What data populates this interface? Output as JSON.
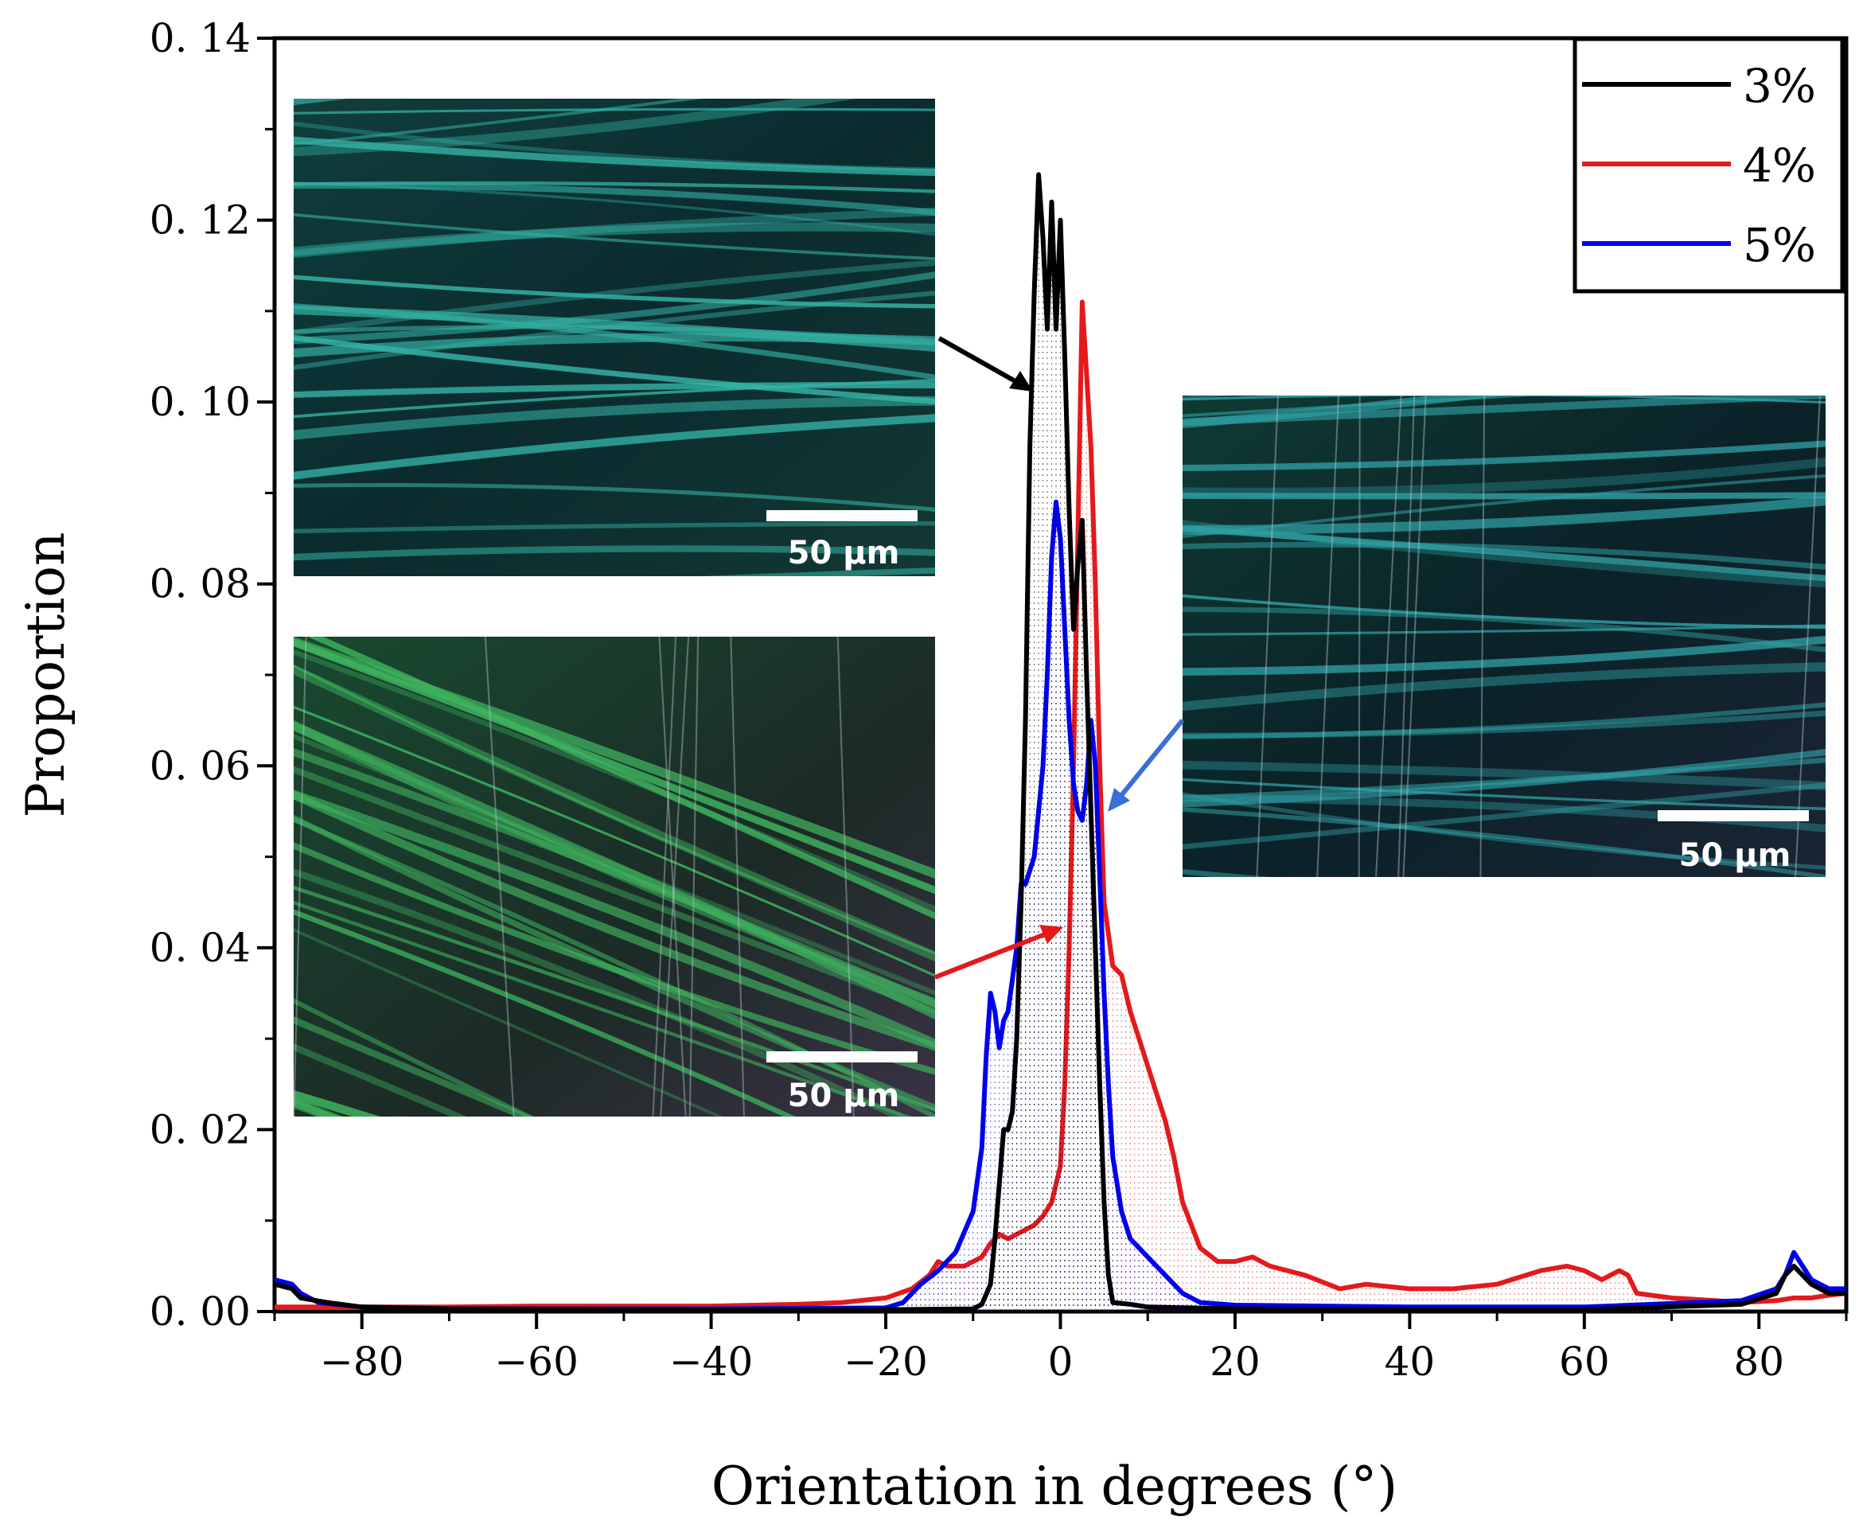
{
  "chart_data": {
    "type": "line",
    "title": "",
    "xlabel": "Orientation in degrees (°)",
    "ylabel": "Proportion",
    "xlim": [
      -90,
      90
    ],
    "ylim": [
      0,
      0.14
    ],
    "xticks": [
      -80,
      -60,
      -40,
      -20,
      0,
      20,
      40,
      60,
      80
    ],
    "xtick_labels": [
      "−80",
      "−60",
      "−40",
      "−20",
      "0",
      "20",
      "40",
      "60",
      "80"
    ],
    "yticks": [
      0,
      0.02,
      0.04,
      0.06,
      0.08,
      0.1,
      0.12,
      0.14
    ],
    "ytick_labels": [
      "0. 00",
      "0. 02",
      "0. 04",
      "0. 06",
      "0. 08",
      "0. 10",
      "0. 12",
      "0. 14"
    ],
    "grid": false,
    "legend_position": "top-right",
    "series": [
      {
        "name": "3%",
        "color": "#000000",
        "points": [
          [
            -90,
            0.003
          ],
          [
            -88,
            0.0025
          ],
          [
            -87,
            0.0015
          ],
          [
            -84,
            0.001
          ],
          [
            -80,
            0.0005
          ],
          [
            -70,
            0.0003
          ],
          [
            -40,
            0.0002
          ],
          [
            -20,
            0.0002
          ],
          [
            -10,
            0.0003
          ],
          [
            -9,
            0.0008
          ],
          [
            -8,
            0.003
          ],
          [
            -7.5,
            0.008
          ],
          [
            -7,
            0.014
          ],
          [
            -6.5,
            0.02
          ],
          [
            -6,
            0.02
          ],
          [
            -5.5,
            0.022
          ],
          [
            -5,
            0.03
          ],
          [
            -4.5,
            0.045
          ],
          [
            -4,
            0.065
          ],
          [
            -3.5,
            0.095
          ],
          [
            -3,
            0.112
          ],
          [
            -2.5,
            0.125
          ],
          [
            -2,
            0.118
          ],
          [
            -1.5,
            0.108
          ],
          [
            -1,
            0.122
          ],
          [
            -0.5,
            0.108
          ],
          [
            0,
            0.12
          ],
          [
            0.5,
            0.105
          ],
          [
            1,
            0.088
          ],
          [
            1.5,
            0.075
          ],
          [
            2,
            0.082
          ],
          [
            2.5,
            0.087
          ],
          [
            3,
            0.07
          ],
          [
            3.5,
            0.055
          ],
          [
            4,
            0.04
          ],
          [
            4.5,
            0.025
          ],
          [
            5,
            0.012
          ],
          [
            5.5,
            0.004
          ],
          [
            6,
            0.001
          ],
          [
            8,
            0.0008
          ],
          [
            10,
            0.0005
          ],
          [
            20,
            0.0003
          ],
          [
            40,
            0.0002
          ],
          [
            60,
            0.0002
          ],
          [
            78,
            0.0008
          ],
          [
            82,
            0.002
          ],
          [
            83,
            0.004
          ],
          [
            84,
            0.005
          ],
          [
            85,
            0.004
          ],
          [
            86,
            0.003
          ],
          [
            88,
            0.002
          ],
          [
            90,
            0.002
          ]
        ]
      },
      {
        "name": "4%",
        "color": "#e31a1c",
        "points": [
          [
            -90,
            0.0005
          ],
          [
            -80,
            0.0005
          ],
          [
            -70,
            0.0005
          ],
          [
            -60,
            0.0006
          ],
          [
            -40,
            0.0006
          ],
          [
            -30,
            0.0008
          ],
          [
            -25,
            0.001
          ],
          [
            -20,
            0.0015
          ],
          [
            -17,
            0.0025
          ],
          [
            -15,
            0.004
          ],
          [
            -14,
            0.0055
          ],
          [
            -13,
            0.005
          ],
          [
            -12,
            0.005
          ],
          [
            -11,
            0.005
          ],
          [
            -10,
            0.0055
          ],
          [
            -9,
            0.006
          ],
          [
            -8,
            0.0075
          ],
          [
            -7,
            0.0085
          ],
          [
            -6,
            0.008
          ],
          [
            -5,
            0.0085
          ],
          [
            -4,
            0.009
          ],
          [
            -3,
            0.0095
          ],
          [
            -2,
            0.0105
          ],
          [
            -1,
            0.012
          ],
          [
            0,
            0.016
          ],
          [
            0.5,
            0.025
          ],
          [
            1,
            0.04
          ],
          [
            1.5,
            0.06
          ],
          [
            2,
            0.085
          ],
          [
            2.5,
            0.111
          ],
          [
            3,
            0.103
          ],
          [
            3.5,
            0.095
          ],
          [
            4,
            0.08
          ],
          [
            4.5,
            0.06
          ],
          [
            5,
            0.045
          ],
          [
            6,
            0.038
          ],
          [
            7,
            0.037
          ],
          [
            8,
            0.033
          ],
          [
            9,
            0.03
          ],
          [
            10,
            0.027
          ],
          [
            11,
            0.024
          ],
          [
            12,
            0.021
          ],
          [
            13,
            0.017
          ],
          [
            14,
            0.012
          ],
          [
            16,
            0.007
          ],
          [
            18,
            0.0055
          ],
          [
            20,
            0.0055
          ],
          [
            22,
            0.006
          ],
          [
            24,
            0.005
          ],
          [
            28,
            0.004
          ],
          [
            32,
            0.0025
          ],
          [
            35,
            0.003
          ],
          [
            40,
            0.0025
          ],
          [
            45,
            0.0025
          ],
          [
            50,
            0.003
          ],
          [
            55,
            0.0045
          ],
          [
            58,
            0.005
          ],
          [
            60,
            0.0045
          ],
          [
            62,
            0.0035
          ],
          [
            64,
            0.0045
          ],
          [
            65,
            0.004
          ],
          [
            66,
            0.002
          ],
          [
            70,
            0.0015
          ],
          [
            75,
            0.0012
          ],
          [
            78,
            0.001
          ],
          [
            82,
            0.0012
          ],
          [
            84,
            0.0015
          ],
          [
            86,
            0.0015
          ],
          [
            88,
            0.0018
          ],
          [
            90,
            0.002
          ]
        ]
      },
      {
        "name": "5%",
        "color": "#0000ee",
        "points": [
          [
            -90,
            0.0035
          ],
          [
            -88,
            0.003
          ],
          [
            -87,
            0.002
          ],
          [
            -85,
            0.001
          ],
          [
            -80,
            0.0005
          ],
          [
            -70,
            0.0003
          ],
          [
            -40,
            0.0003
          ],
          [
            -20,
            0.0004
          ],
          [
            -18,
            0.001
          ],
          [
            -16,
            0.003
          ],
          [
            -14,
            0.0045
          ],
          [
            -12,
            0.0065
          ],
          [
            -10,
            0.011
          ],
          [
            -9,
            0.018
          ],
          [
            -8.5,
            0.028
          ],
          [
            -8,
            0.035
          ],
          [
            -7.5,
            0.033
          ],
          [
            -7,
            0.029
          ],
          [
            -6.5,
            0.032
          ],
          [
            -6,
            0.033
          ],
          [
            -5,
            0.04
          ],
          [
            -4.5,
            0.047
          ],
          [
            -4,
            0.047
          ],
          [
            -3,
            0.05
          ],
          [
            -2,
            0.06
          ],
          [
            -1.5,
            0.07
          ],
          [
            -1,
            0.083
          ],
          [
            -0.5,
            0.089
          ],
          [
            0,
            0.085
          ],
          [
            0.5,
            0.075
          ],
          [
            1,
            0.065
          ],
          [
            1.5,
            0.058
          ],
          [
            2,
            0.055
          ],
          [
            2.5,
            0.054
          ],
          [
            3,
            0.058
          ],
          [
            3.5,
            0.065
          ],
          [
            4,
            0.06
          ],
          [
            4.5,
            0.048
          ],
          [
            5,
            0.035
          ],
          [
            5.5,
            0.025
          ],
          [
            6,
            0.017
          ],
          [
            7,
            0.011
          ],
          [
            8,
            0.008
          ],
          [
            10,
            0.006
          ],
          [
            12,
            0.004
          ],
          [
            14,
            0.002
          ],
          [
            16,
            0.001
          ],
          [
            20,
            0.0007
          ],
          [
            40,
            0.0005
          ],
          [
            60,
            0.0005
          ],
          [
            78,
            0.0012
          ],
          [
            82,
            0.0025
          ],
          [
            83,
            0.004
          ],
          [
            84,
            0.0065
          ],
          [
            85,
            0.005
          ],
          [
            86,
            0.0035
          ],
          [
            88,
            0.0025
          ],
          [
            90,
            0.0025
          ]
        ]
      }
    ]
  },
  "insets": [
    {
      "name": "3% fiber micrograph",
      "scale_label": "50 µm",
      "palette": [
        "#0b2b2e",
        "#35b3a6"
      ]
    },
    {
      "name": "4% fiber micrograph",
      "scale_label": "50 µm",
      "palette": [
        "#0f2a1e",
        "#3fb35f"
      ]
    },
    {
      "name": "5% fiber micrograph",
      "scale_label": "50 µm",
      "palette": [
        "#0a2228",
        "#2fa0a4"
      ]
    }
  ]
}
